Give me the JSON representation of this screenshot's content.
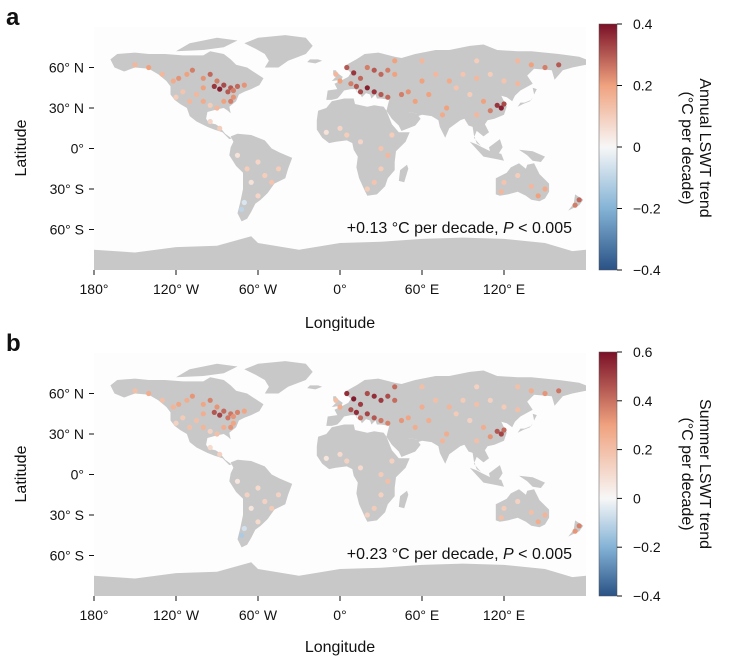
{
  "chart_data": [
    {
      "type": "scatter",
      "panel_letter": "a",
      "xlabel": "Longitude",
      "ylabel": "Latitude",
      "x_ticks": [
        "180°",
        "120° W",
        "60° W",
        "0°",
        "60° E",
        "120° E"
      ],
      "y_ticks": [
        "60° N",
        "30° N",
        "0°",
        "30° S",
        "60° S"
      ],
      "x_tick_values": [
        -180,
        -120,
        -60,
        0,
        60,
        120
      ],
      "y_tick_values": [
        60,
        30,
        0,
        -30,
        -60
      ],
      "xlim": [
        -180,
        180
      ],
      "ylim": [
        -90,
        90
      ],
      "annotation_prefix": "+0.13 °C per decade, ",
      "annotation_p": "P",
      "annotation_suffix": " < 0.005",
      "colorbar_label_line1": "Annual LSWT trend",
      "colorbar_label_line2": "(°C per decade)",
      "colorbar_ticks": [
        "0.4",
        "0.2",
        "0",
        "−0.2",
        "−0.4"
      ],
      "colorbar_tick_values": [
        0.4,
        0.2,
        0,
        -0.2,
        -0.4
      ],
      "colorbar_range": [
        -0.4,
        0.4
      ],
      "background_color": "#fdfdfd",
      "land_color": "#c8c8c8"
    },
    {
      "type": "scatter",
      "panel_letter": "b",
      "xlabel": "Longitude",
      "ylabel": "Latitude",
      "x_ticks": [
        "180°",
        "120° W",
        "60° W",
        "0°",
        "60° E",
        "120° E"
      ],
      "y_ticks": [
        "60° N",
        "30° N",
        "0°",
        "30° S",
        "60° S"
      ],
      "x_tick_values": [
        -180,
        -120,
        -60,
        0,
        60,
        120
      ],
      "y_tick_values": [
        60,
        30,
        0,
        -30,
        -60
      ],
      "xlim": [
        -180,
        180
      ],
      "ylim": [
        -90,
        90
      ],
      "annotation_prefix": "+0.23 °C per decade, ",
      "annotation_p": "P",
      "annotation_suffix": " < 0.005",
      "colorbar_label_line1": "Summer LSWT trend",
      "colorbar_label_line2": "(°C per decade)",
      "colorbar_ticks": [
        "0.6",
        "0.4",
        "0.2",
        "0",
        "−0.2",
        "−0.4"
      ],
      "colorbar_tick_values": [
        0.6,
        0.4,
        0.2,
        0,
        -0.2,
        -0.4
      ],
      "colorbar_range": [
        -0.4,
        0.6
      ],
      "background_color": "#fdfdfd",
      "land_color": "#c8c8c8"
    }
  ]
}
